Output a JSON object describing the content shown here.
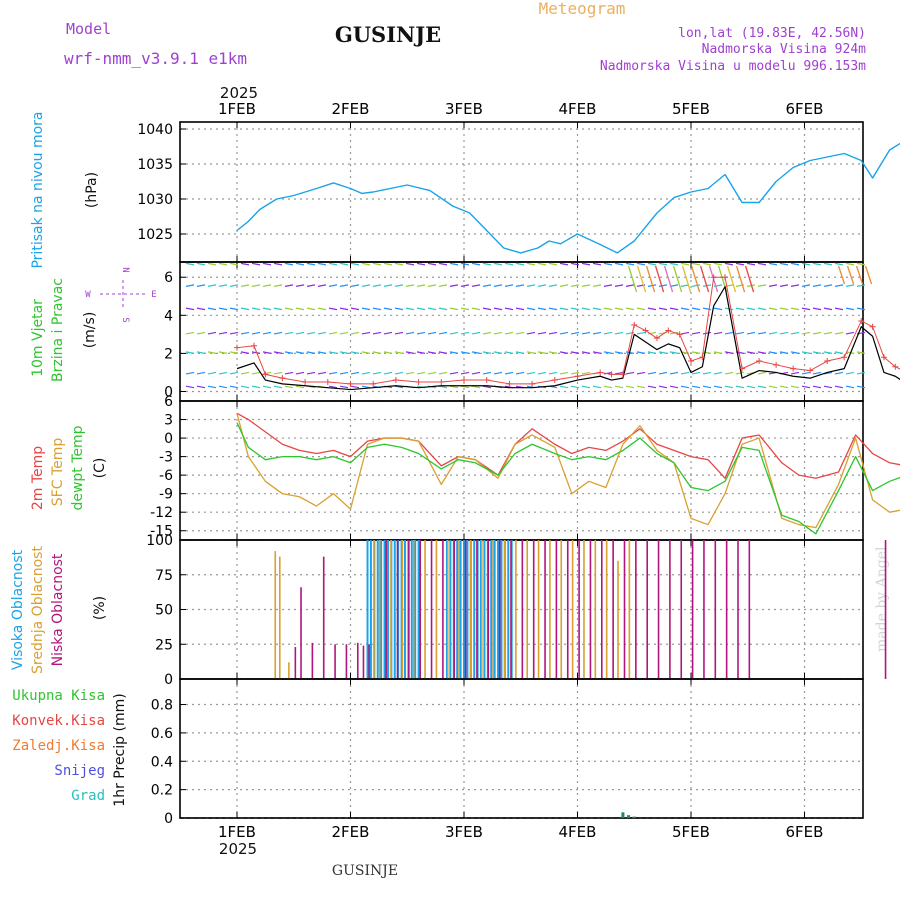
{
  "header": {
    "title": "GUSINJE",
    "subtitle": "Meteogram",
    "model_label": "Model",
    "model_name": "wrf-nmm_v3.9.1  e1km",
    "lonlat": "lon,lat (19.83E, 42.56N)",
    "elevation": "Nadmorska Visina 924m",
    "model_elevation": "Nadmorska Visina u modelu 996.153m",
    "year_top": "2025",
    "year_bottom": "2025",
    "footer": "GUSINJE",
    "watermark": "made by Angel"
  },
  "colors": {
    "pressure": "#1aa3e8",
    "temp2m": "#e84545",
    "sfc": "#d9a030",
    "dew": "#2fc52f",
    "high_cloud": "#1aa3e8",
    "mid_cloud": "#d9a030",
    "low_cloud": "#b0157c",
    "wind_label": "#2fc52f",
    "wind_label2": "#2fc52f",
    "purple": "#a040d0"
  },
  "chart_data": [
    {
      "type": "line",
      "title": "Pritisak na nivou mora",
      "ylabel": "(hPa)",
      "yticks": [
        1025,
        1030,
        1035,
        1040
      ],
      "ylim": [
        1021,
        1041
      ],
      "xlim": [
        0,
        6
      ],
      "x_ticks": [
        "1FEB",
        "2FEB",
        "3FEB",
        "4FEB",
        "5FEB",
        "6FEB"
      ],
      "x": [
        0,
        0.1,
        0.2,
        0.35,
        0.5,
        0.7,
        0.85,
        1,
        1.1,
        1.2,
        1.35,
        1.5,
        1.7,
        1.9,
        2.05,
        2.2,
        2.35,
        2.5,
        2.65,
        2.75,
        2.85,
        3,
        3.2,
        3.35,
        3.5,
        3.7,
        3.85,
        4,
        4.15,
        4.3,
        4.45,
        4.6,
        4.75,
        4.9,
        5.05,
        5.2,
        5.35,
        5.5,
        5.6,
        5.75,
        5.9,
        6
      ],
      "series": [
        {
          "values": [
            1025.5,
            1026.8,
            1028.5,
            1030,
            1030.5,
            1031.5,
            1032.3,
            1031.5,
            1030.8,
            1031,
            1031.5,
            1032,
            1031.2,
            1029,
            1028,
            1025.5,
            1023,
            1022.3,
            1023,
            1024,
            1023.6,
            1025,
            1023.5,
            1022.3,
            1024,
            1028,
            1030.2,
            1031,
            1031.5,
            1033.5,
            1029.5,
            1029.5,
            1032.5,
            1034.5,
            1035.5,
            1036,
            1036.5,
            1035.5,
            1033,
            1037,
            1038.5,
            1039
          ]
        }
      ]
    },
    {
      "type": "line",
      "title": "10m Vjetar Brzina i Pravac",
      "ylabel": "(m/s)",
      "direction_legend": [
        "N",
        "W",
        "E",
        "S"
      ],
      "yticks": [
        0,
        2,
        4,
        6
      ],
      "ylim": [
        -0.5,
        6.8
      ],
      "xlim": [
        0,
        6
      ],
      "x": [
        0,
        0.15,
        0.25,
        0.4,
        0.6,
        0.8,
        1,
        1.2,
        1.4,
        1.6,
        1.8,
        2,
        2.2,
        2.4,
        2.6,
        2.8,
        3,
        3.2,
        3.3,
        3.4,
        3.5,
        3.6,
        3.7,
        3.8,
        3.9,
        4,
        4.1,
        4.2,
        4.3,
        4.45,
        4.6,
        4.75,
        4.9,
        5.05,
        5.2,
        5.35,
        5.5,
        5.6,
        5.7,
        5.8,
        5.9,
        6
      ],
      "series": [
        {
          "name": "speed",
          "values": [
            1.2,
            1.5,
            0.6,
            0.4,
            0.3,
            0.2,
            0.1,
            0.2,
            0.3,
            0.2,
            0.3,
            0.3,
            0.3,
            0.2,
            0.2,
            0.3,
            0.6,
            0.8,
            0.6,
            0.7,
            3,
            2.6,
            2.2,
            2.5,
            2.3,
            1,
            1.3,
            4.5,
            5.5,
            0.7,
            1.1,
            1,
            0.8,
            0.7,
            1,
            1.2,
            3.4,
            2.9,
            1,
            0.8,
            0.4,
            1.2
          ]
        },
        {
          "name": "gust",
          "values": [
            2.3,
            2.4,
            0.9,
            0.7,
            0.5,
            0.5,
            0.4,
            0.4,
            0.6,
            0.5,
            0.5,
            0.6,
            0.6,
            0.4,
            0.4,
            0.6,
            0.8,
            1,
            0.9,
            0.9,
            3.5,
            3.2,
            2.8,
            3.2,
            3,
            1.6,
            1.8,
            6,
            6,
            1.2,
            1.6,
            1.4,
            1.2,
            1.1,
            1.6,
            1.8,
            3.7,
            3.4,
            1.8,
            1.3,
            1,
            0.7
          ]
        }
      ]
    },
    {
      "type": "line",
      "title": "2m Temp / SFC Temp / dewpt Temp",
      "ylabel": "(C)",
      "yticks": [
        6,
        3,
        0,
        -3,
        -6,
        -9,
        -12,
        -15
      ],
      "ylim": [
        -16.5,
        6
      ],
      "xlim": [
        0,
        6
      ],
      "x": [
        0,
        0.1,
        0.25,
        0.4,
        0.55,
        0.7,
        0.85,
        1,
        1.15,
        1.3,
        1.45,
        1.6,
        1.8,
        1.95,
        2.1,
        2.3,
        2.45,
        2.6,
        2.8,
        2.95,
        3.1,
        3.25,
        3.4,
        3.55,
        3.7,
        3.85,
        4,
        4.15,
        4.3,
        4.45,
        4.6,
        4.8,
        4.95,
        5.1,
        5.3,
        5.45,
        5.6,
        5.75,
        5.9,
        6
      ],
      "series": [
        {
          "name": "2m Temp",
          "values": [
            4,
            3,
            1,
            -1,
            -2,
            -2.5,
            -2,
            -3,
            -0.5,
            0,
            0,
            -0.5,
            -4.5,
            -3,
            -3.5,
            -6,
            -1,
            1.5,
            -1,
            -2.5,
            -1.5,
            -2,
            -0.5,
            1.5,
            -1,
            -2,
            -3,
            -3.5,
            -6.5,
            0,
            0.5,
            -4,
            -6,
            -6.5,
            -5.5,
            0.5,
            -2.5,
            -4,
            -4.5,
            -0.5
          ]
        },
        {
          "name": "SFC Temp",
          "values": [
            4,
            -3,
            -7,
            -9,
            -9.5,
            -11,
            -9,
            -11.5,
            -1,
            0,
            0,
            -0.5,
            -7.5,
            -3,
            -3.5,
            -6.5,
            -1,
            0.5,
            -1.5,
            -9,
            -7,
            -8,
            -1,
            2,
            -2,
            -4,
            -13,
            -14,
            -9,
            -1,
            0,
            -13,
            -14,
            -14.5,
            -7.5,
            0,
            -10,
            -12,
            -11.5,
            0.5
          ]
        },
        {
          "name": "dewpt Temp",
          "values": [
            2.5,
            -1.5,
            -3.5,
            -3,
            -3,
            -3.5,
            -3,
            -4,
            -1.5,
            -1,
            -1.5,
            -2.5,
            -5,
            -3.5,
            -4,
            -6,
            -2.5,
            -1,
            -2.5,
            -3.5,
            -3,
            -3.5,
            -2,
            0,
            -2.5,
            -4,
            -8,
            -8.5,
            -7,
            -1.5,
            -2,
            -12.5,
            -13.5,
            -15.5,
            -8.5,
            -3,
            -8.5,
            -7,
            -6,
            -3
          ]
        }
      ]
    },
    {
      "type": "bar",
      "title": "Visoka Oblacnost / Srednja Oblacnost / Niska Oblacnost",
      "ylabel": "(%)",
      "yticks": [
        0,
        25,
        50,
        75,
        100
      ],
      "ylim": [
        0,
        100
      ],
      "xlim": [
        0,
        6
      ],
      "series": [
        {
          "name": "Visoka Oblacnost",
          "x": [
            1.15,
            1.18,
            1.21,
            1.24,
            1.27,
            1.3,
            1.33,
            1.36,
            1.39,
            1.42,
            1.45,
            1.48,
            1.51,
            1.54,
            1.57,
            1.6,
            1.85,
            1.88,
            1.91,
            1.94,
            1.97,
            2,
            2.03,
            2.06,
            2.09,
            2.12,
            2.15,
            2.18,
            2.21,
            2.24,
            2.27,
            2.3,
            2.33,
            2.36,
            2.39,
            2.42
          ],
          "values": [
            100,
            100,
            100,
            100,
            100,
            100,
            100,
            100,
            100,
            100,
            100,
            100,
            100,
            100,
            100,
            100,
            100,
            100,
            100,
            100,
            100,
            100,
            100,
            100,
            100,
            100,
            100,
            100,
            100,
            100,
            100,
            100,
            100,
            100,
            100,
            100
          ]
        },
        {
          "name": "Srednja Oblacnost",
          "x": [
            0.33,
            0.37,
            0.45,
            1.2,
            1.25,
            1.35,
            1.45,
            1.55,
            1.65,
            1.75,
            1.85,
            1.95,
            2.05,
            2.15,
            2.25,
            2.35,
            2.45,
            2.55,
            2.65,
            2.75,
            2.85,
            2.95,
            3.05,
            3.15,
            3.25,
            3.35,
            3.45
          ],
          "values": [
            92,
            88,
            12,
            100,
            100,
            100,
            100,
            100,
            100,
            100,
            100,
            100,
            100,
            100,
            100,
            100,
            100,
            100,
            100,
            100,
            100,
            100,
            100,
            100,
            100,
            85,
            100
          ]
        },
        {
          "name": "Niska Oblacnost",
          "x": [
            0.5,
            0.55,
            0.65,
            0.75,
            0.85,
            0.95,
            1.05,
            1.1,
            1.15,
            1.3,
            1.4,
            1.5,
            1.6,
            1.7,
            1.8,
            1.9,
            2,
            2.1,
            2.2,
            2.3,
            2.4,
            2.5,
            2.6,
            2.7,
            2.8,
            2.9,
            3,
            3.1,
            3.2,
            3.3,
            3.4,
            3.5,
            3.6,
            3.7,
            3.8,
            3.9,
            4,
            4.1,
            4.2,
            4.3,
            4.4,
            4.5,
            5.7
          ],
          "values": [
            23,
            66,
            26,
            88,
            25,
            25,
            26,
            24,
            25,
            100,
            100,
            100,
            100,
            100,
            100,
            100,
            100,
            100,
            100,
            100,
            100,
            100,
            100,
            100,
            100,
            100,
            100,
            100,
            100,
            100,
            100,
            100,
            100,
            100,
            100,
            100,
            100,
            100,
            100,
            100,
            100,
            100,
            100
          ]
        }
      ]
    },
    {
      "type": "bar",
      "title": "1hr Precip",
      "ylabel": "1hr Precip (mm)",
      "legend": [
        "Ukupna Kisa",
        "Konvek.Kisa",
        "Zaledj.Kisa",
        "Snijeg",
        "Grad"
      ],
      "yticks": [
        0,
        0.2,
        0.4,
        0.6,
        0.8
      ],
      "ylim": [
        0,
        0.98
      ],
      "xlim": [
        0,
        6
      ],
      "x": [
        3.4,
        3.45,
        3.5
      ],
      "values": [
        0.04,
        0.02,
        0.01
      ]
    }
  ]
}
